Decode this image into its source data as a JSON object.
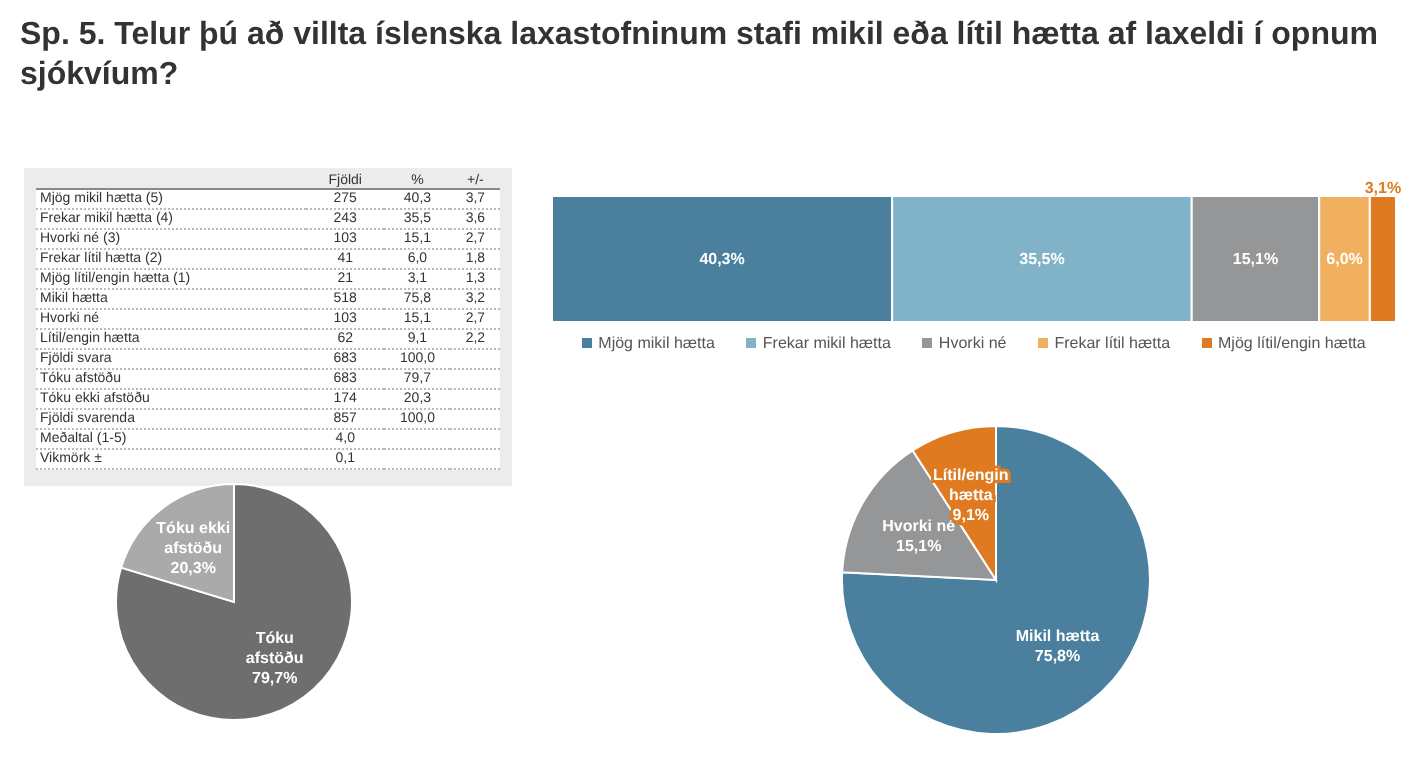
{
  "chart_data": [
    {
      "type": "other",
      "title": "Sp. 5. Telur þú að villta íslenska laxastofninum stafi mikil eða lítil hætta af laxeldi í opnum sjókvíum?",
      "categories": [
        "Fjöldi",
        "%",
        "+/-"
      ],
      "y_categories": [
        "Mjög mikil hætta (5)",
        "Frekar mikil hætta (4)",
        "Hvorki né (3)",
        "Frekar lítil hætta (2)",
        "Mjög lítil/engin hætta (1)",
        "Mikil hætta",
        "Hvorki né",
        "Lítil/engin hætta",
        "Fjöldi svara",
        "Tóku afstöðu",
        "Tóku ekki afstöðu",
        "Fjöldi svarenda",
        "Meðaltal (1-5)",
        "Vikmörk ±"
      ],
      "cell_labels": [
        [
          "275",
          "40,3",
          "3,7"
        ],
        [
          "243",
          "35,5",
          "3,6"
        ],
        [
          "103",
          "15,1",
          "2,7"
        ],
        [
          "41",
          "6,0",
          "1,8"
        ],
        [
          "21",
          "3,1",
          "1,3"
        ],
        [
          "518",
          "75,8",
          "3,2"
        ],
        [
          "103",
          "15,1",
          "2,7"
        ],
        [
          "62",
          "9,1",
          "2,2"
        ],
        [
          "683",
          "100,0",
          null
        ],
        [
          "683",
          "79,7",
          null
        ],
        [
          "174",
          "20,3",
          null
        ],
        [
          "857",
          "100,0",
          null
        ],
        [
          "4,0",
          null,
          null
        ],
        [
          "0,1",
          null,
          null
        ]
      ]
    },
    {
      "type": "bar",
      "orientation": "horizontal",
      "stacked": true,
      "categories": [
        null
      ],
      "xlim": [
        0,
        100
      ],
      "tick_labels": false,
      "legend": "bottom",
      "series": [
        {
          "name": "Mjög mikil hætta",
          "color": "#4a7f9e",
          "values": [
            40.3
          ],
          "value_labels": [
            "40,3%"
          ]
        },
        {
          "name": "Frekar mikil hætta",
          "color": "#80b2c8",
          "values": [
            35.5
          ],
          "value_labels": [
            "35,5%"
          ]
        },
        {
          "name": "Hvorki né",
          "color": "#949698",
          "values": [
            15.1
          ],
          "value_labels": [
            "15,1%"
          ]
        },
        {
          "name": "Frekar lítil hætta",
          "color": "#f0b060",
          "values": [
            6.0
          ],
          "value_labels": [
            "6,0%"
          ]
        },
        {
          "name": "Mjög lítil/engin hætta",
          "color": "#e07a20",
          "values": [
            3.1
          ],
          "value_labels": [
            "3,1%"
          ]
        }
      ]
    },
    {
      "type": "pie",
      "categories": [
        "Tóku afstöðu",
        "Tóku ekki afstöðu"
      ],
      "values": [
        79.7,
        20.3
      ],
      "colors": [
        "#6e6e6e",
        "#aaaaaa"
      ],
      "value_labels": [
        "79,7%",
        "20,3%"
      ]
    },
    {
      "type": "pie",
      "categories": [
        "Mikil hætta",
        "Hvorki né",
        "Lítil/engin hætta"
      ],
      "values": [
        75.8,
        15.1,
        9.1
      ],
      "colors": [
        "#4a7f9e",
        "#949698",
        "#e07a20"
      ],
      "value_labels": [
        "75,8%",
        "15,1%",
        "9,1%"
      ]
    }
  ]
}
